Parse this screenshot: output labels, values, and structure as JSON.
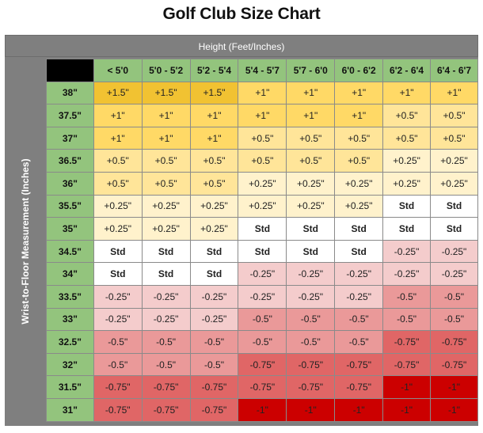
{
  "title": "Golf Club Size Chart",
  "header": "Height (Feet/Inches)",
  "side_label": "Wrist-to-Floor Measurement (Inches)",
  "columns": [
    "< 5'0",
    "5'0 - 5'2",
    "5'2 - 5'4",
    "5'4 - 5'7",
    "5'7 - 6'0",
    "6'0 - 6'2",
    "6'2 - 6'4",
    "6'4 - 6'7"
  ],
  "rows": [
    {
      "label": "38\"",
      "values": [
        "+1.5\"",
        "+1.5\"",
        "+1.5\"",
        "+1\"",
        "+1\"",
        "+1\"",
        "+1\"",
        "+1\""
      ]
    },
    {
      "label": "37.5\"",
      "values": [
        "+1\"",
        "+1\"",
        "+1\"",
        "+1\"",
        "+1\"",
        "+1\"",
        "+0.5\"",
        "+0.5\""
      ]
    },
    {
      "label": "37\"",
      "values": [
        "+1\"",
        "+1\"",
        "+1\"",
        "+0.5\"",
        "+0.5\"",
        "+0.5\"",
        "+0.5\"",
        "+0.5\""
      ]
    },
    {
      "label": "36.5\"",
      "values": [
        "+0.5\"",
        "+0.5\"",
        "+0.5\"",
        "+0.5\"",
        "+0.5\"",
        "+0.5\"",
        "+0.25\"",
        "+0.25\""
      ]
    },
    {
      "label": "36\"",
      "values": [
        "+0.5\"",
        "+0.5\"",
        "+0.5\"",
        "+0.25\"",
        "+0.25\"",
        "+0.25\"",
        "+0.25\"",
        "+0.25\""
      ]
    },
    {
      "label": "35.5\"",
      "values": [
        "+0.25\"",
        "+0.25\"",
        "+0.25\"",
        "+0.25\"",
        "+0.25\"",
        "+0.25\"",
        "Std",
        "Std"
      ]
    },
    {
      "label": "35\"",
      "values": [
        "+0.25\"",
        "+0.25\"",
        "+0.25\"",
        "Std",
        "Std",
        "Std",
        "Std",
        "Std"
      ]
    },
    {
      "label": "34.5\"",
      "values": [
        "Std",
        "Std",
        "Std",
        "Std",
        "Std",
        "Std",
        "-0.25\"",
        "-0.25\""
      ]
    },
    {
      "label": "34\"",
      "values": [
        "Std",
        "Std",
        "Std",
        "-0.25\"",
        "-0.25\"",
        "-0.25\"",
        "-0.25\"",
        "-0.25\""
      ]
    },
    {
      "label": "33.5\"",
      "values": [
        "-0.25\"",
        "-0.25\"",
        "-0.25\"",
        "-0.25\"",
        "-0.25\"",
        "-0.25\"",
        "-0.5\"",
        "-0.5\""
      ]
    },
    {
      "label": "33\"",
      "values": [
        "-0.25\"",
        "-0.25\"",
        "-0.25\"",
        "-0.5\"",
        "-0.5\"",
        "-0.5\"",
        "-0.5\"",
        "-0.5\""
      ]
    },
    {
      "label": "32.5\"",
      "values": [
        "-0.5\"",
        "-0.5\"",
        "-0.5\"",
        "-0.5\"",
        "-0.5\"",
        "-0.5\"",
        "-0.75\"",
        "-0.75\""
      ]
    },
    {
      "label": "32\"",
      "values": [
        "-0.5\"",
        "-0.5\"",
        "-0.5\"",
        "-0.75\"",
        "-0.75\"",
        "-0.75\"",
        "-0.75\"",
        "-0.75\""
      ]
    },
    {
      "label": "31.5\"",
      "values": [
        "-0.75\"",
        "-0.75\"",
        "-0.75\"",
        "-0.75\"",
        "-0.75\"",
        "-0.75\"",
        "-1\"",
        "-1\""
      ]
    },
    {
      "label": "31\"",
      "values": [
        "-0.75\"",
        "-0.75\"",
        "-0.75\"",
        "-1\"",
        "-1\"",
        "-1\"",
        "-1\"",
        "-1\""
      ]
    }
  ],
  "colors": {
    "+1.5\"": "#f1c232",
    "+1\"": "#ffd966",
    "+0.5\"": "#ffe599",
    "+0.25\"": "#fff2cc",
    "Std": "#ffffff",
    "-0.25\"": "#f4cccc",
    "-0.5\"": "#ea9999",
    "-0.75\"": "#e06666",
    "-1\"": "#cc0000",
    "header_green": "#93c47d",
    "band_gray": "#7f7f7f"
  }
}
